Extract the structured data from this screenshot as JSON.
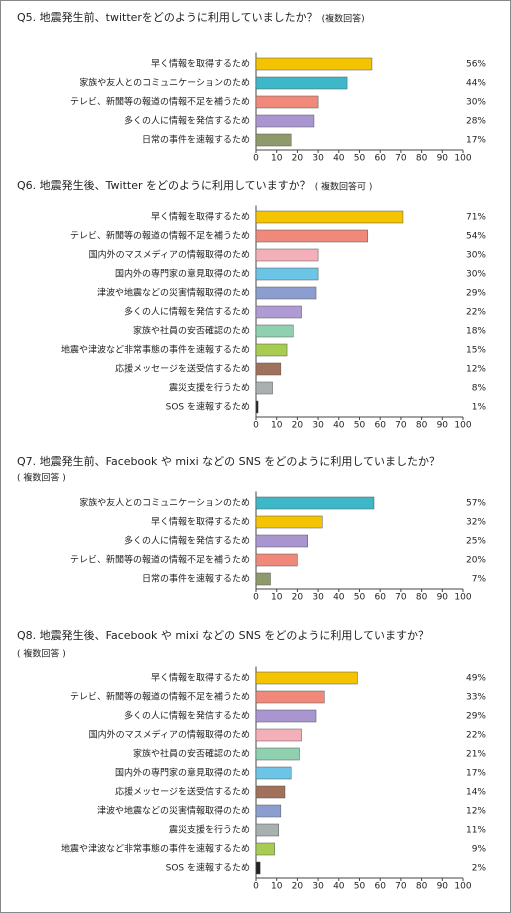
{
  "chart_data": [
    {
      "type": "bar",
      "title": "Q5.  地震発生前、twitterをどのように利用していましたか？",
      "subtitle": "(複数回答)",
      "categories": [
        "早く情報を取得するため",
        "家族や友人とのコミュニケーションのため",
        "テレビ、新聞等の報道の情報不足を補うため",
        "多くの人に情報を発信するため",
        "日常の事件を速報するため"
      ],
      "values": [
        56,
        44,
        30,
        28,
        17
      ],
      "value_labels": [
        "56%",
        "44%",
        "30%",
        "28%",
        "17%"
      ],
      "colors": [
        "#f5c400",
        "#3cb8c8",
        "#f0897a",
        "#a996d0",
        "#8f9a6c"
      ],
      "xlim": [
        0,
        100
      ],
      "xticks": [
        0,
        10,
        20,
        30,
        40,
        50,
        60,
        70,
        80,
        90,
        100
      ]
    },
    {
      "type": "bar",
      "title": "Q6.  地震発生後、Twitter をどのように利用していますか？",
      "subtitle": "( 複数回答可 )",
      "categories": [
        "早く情報を取得するため",
        "テレビ、新聞等の報道の情報不足を補うため",
        "国内外のマスメディアの情報取得のため",
        "国内外の専門家の意見取得のため",
        "津波や地震などの災害情報取得のため",
        "多くの人に情報を発信するため",
        "家族や社員の安否確認のため",
        "地震や津波など非常事態の事件を速報するため",
        "応援メッセージを送受信するため",
        "震災支援を行うため",
        "SOS を速報するため"
      ],
      "values": [
        71,
        54,
        30,
        30,
        29,
        22,
        18,
        15,
        12,
        8,
        1
      ],
      "value_labels": [
        "71%",
        "54%",
        "30%",
        "30%",
        "29%",
        "22%",
        "18%",
        "15%",
        "12%",
        "8%",
        "1%"
      ],
      "colors": [
        "#f5c400",
        "#f0897a",
        "#f4b0b8",
        "#6cc4e6",
        "#8c9ecf",
        "#b09ad4",
        "#8ed0b0",
        "#a8cc50",
        "#a0705a",
        "#a8b0b0",
        "#222222"
      ],
      "xlim": [
        0,
        100
      ],
      "xticks": [
        0,
        10,
        20,
        30,
        40,
        50,
        60,
        70,
        80,
        90,
        100
      ]
    },
    {
      "type": "bar",
      "title": "Q7. 地震発生前、Facebook や mixi などの SNS をどのように利用していましたか？",
      "subtitle": "( 複数回答 )",
      "categories": [
        "家族や友人とのコミュニケーションのため",
        "早く情報を取得するため",
        "多くの人に情報を発信するため",
        "テレビ、新聞等の報道の情報不足を補うため",
        "日常の事件を速報するため"
      ],
      "values": [
        57,
        32,
        25,
        20,
        7
      ],
      "value_labels": [
        "57%",
        "32%",
        "25%",
        "20%",
        "7%"
      ],
      "colors": [
        "#3cb8c8",
        "#f5c400",
        "#a996d0",
        "#f0897a",
        "#8f9a6c"
      ],
      "xlim": [
        0,
        100
      ],
      "xticks": [
        0,
        10,
        20,
        30,
        40,
        50,
        60,
        70,
        80,
        90,
        100
      ]
    },
    {
      "type": "bar",
      "title": "Q8. 地震発生後、Facebook や mixi などの SNS をどのように利用していますか？",
      "subtitle": "( 複数回答 )",
      "categories": [
        "早く情報を取得するため",
        "テレビ、新聞等の報道の情報不足を補うため",
        "多くの人に情報を発信するため",
        "国内外のマスメディアの情報取得のため",
        "家族や社員の安否確認のため",
        "国内外の専門家の意見取得のため",
        "応援メッセージを送受信するため",
        "津波や地震などの災害情報取得のため",
        "震災支援を行うため",
        "地震や津波など非常事態の事件を速報するため",
        "SOS を速報するため"
      ],
      "values": [
        49,
        33,
        29,
        22,
        21,
        17,
        14,
        12,
        11,
        9,
        2
      ],
      "value_labels": [
        "49%",
        "33%",
        "29%",
        "22%",
        "21%",
        "17%",
        "14%",
        "12%",
        "11%",
        "9%",
        "2%"
      ],
      "colors": [
        "#f5c400",
        "#f0897a",
        "#a996d0",
        "#f4b0b8",
        "#8ed0b0",
        "#6cc4e6",
        "#a0705a",
        "#8c9ecf",
        "#a8b0b0",
        "#a8cc50",
        "#222222"
      ],
      "xlim": [
        0,
        100
      ],
      "xticks": [
        0,
        10,
        20,
        30,
        40,
        50,
        60,
        70,
        80,
        90,
        100
      ]
    }
  ]
}
